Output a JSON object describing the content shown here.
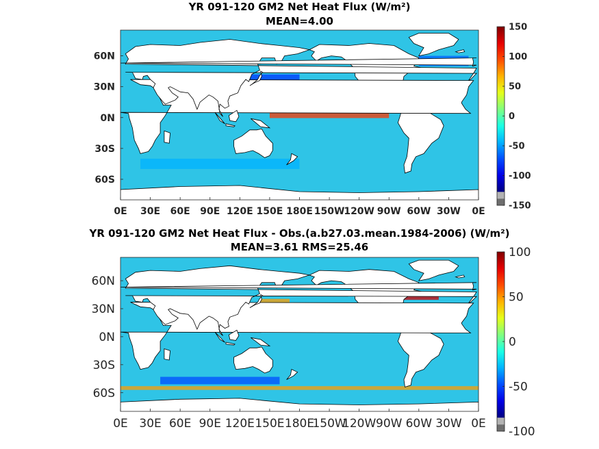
{
  "chart_data": [
    {
      "type": "heatmap",
      "title": "YR 091-120 GM2  Net Heat Flux (W/m²)",
      "subtitle": "MEAN=4.00",
      "x_tick_labels": [
        "0E",
        "30E",
        "60E",
        "90E",
        "120E",
        "150E",
        "180E",
        "150W",
        "120W",
        "90W",
        "60W",
        "30W",
        "0E"
      ],
      "y_tick_labels": [
        "60N",
        "30N",
        "0N",
        "30S",
        "60S"
      ],
      "colorbar_ticks": [
        "150",
        "100",
        "50",
        "0",
        "-50",
        "-100",
        "-150"
      ],
      "colorbar_range": [
        -150,
        150
      ],
      "colormap": "jet"
    },
    {
      "type": "heatmap",
      "title": "YR 091-120 GM2  Net Heat Flux - Obs.(a.b27.03.mean.1984-2006) (W/m²)",
      "subtitle": "MEAN=3.61 RMS=25.46",
      "x_tick_labels": [
        "0E",
        "30E",
        "60E",
        "90E",
        "120E",
        "150E",
        "180E",
        "150W",
        "120W",
        "90W",
        "60W",
        "30W",
        "0E"
      ],
      "y_tick_labels": [
        "60N",
        "30N",
        "0N",
        "30S",
        "60S"
      ],
      "colorbar_ticks": [
        "100",
        "50",
        "0",
        "-50",
        "-100"
      ],
      "colorbar_range": [
        -100,
        100
      ],
      "colormap": "jet"
    }
  ],
  "colors": {
    "ocean_background": "#2fc4e6",
    "land": "#ffffff",
    "missing": "#6e6e6e"
  }
}
